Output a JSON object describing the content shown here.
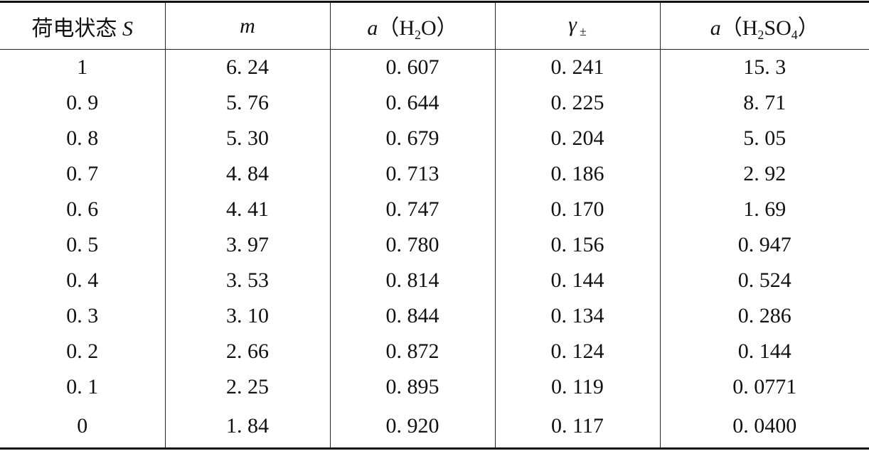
{
  "table": {
    "header": [
      [
        "荷电状态",
        "S"
      ],
      [
        "m"
      ],
      [
        "a",
        "（H",
        "2",
        "O）"
      ],
      [
        "γ",
        "±"
      ],
      [
        "a",
        "（H",
        "2",
        "SO",
        "4",
        "）"
      ]
    ],
    "rows": [
      [
        "1",
        "6. 24",
        "0. 607",
        "0. 241",
        "15. 3"
      ],
      [
        "0. 9",
        "5. 76",
        "0. 644",
        "0. 225",
        "8. 71"
      ],
      [
        "0. 8",
        "5. 30",
        "0. 679",
        "0. 204",
        "5. 05"
      ],
      [
        "0. 7",
        "4. 84",
        "0. 713",
        "0. 186",
        "2. 92"
      ],
      [
        "0. 6",
        "4. 41",
        "0. 747",
        "0. 170",
        "1. 69"
      ],
      [
        "0. 5",
        "3. 97",
        "0. 780",
        "0. 156",
        "0. 947"
      ],
      [
        "0. 4",
        "3. 53",
        "0. 814",
        "0. 144",
        "0. 524"
      ],
      [
        "0. 3",
        "3. 10",
        "0. 844",
        "0. 134",
        "0. 286"
      ],
      [
        "0. 2",
        "2. 66",
        "0. 872",
        "0. 124",
        "0. 144"
      ],
      [
        "0. 1",
        "2. 25",
        "0. 895",
        "0. 119",
        "0. 0771"
      ],
      [
        "0",
        "1. 84",
        "0. 920",
        "0. 117",
        "0. 0400"
      ]
    ]
  }
}
